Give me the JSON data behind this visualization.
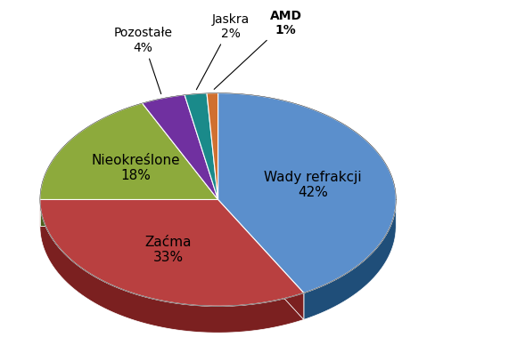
{
  "labels": [
    "Wady refrakcji",
    "Zaćma",
    "Nieokreślone",
    "Pozostałe",
    "Jaskra",
    "AMD"
  ],
  "values": [
    42,
    33,
    18,
    4,
    2,
    1
  ],
  "colors_top": [
    "#5B8FCC",
    "#B94040",
    "#8DAA3C",
    "#7030A0",
    "#1A8A8A",
    "#D07030"
  ],
  "colors_side": [
    "#1F4E79",
    "#7B2020",
    "#4A5E1A",
    "#4A1A70",
    "#0A4A4A",
    "#804010"
  ],
  "dark_green": "#3A5E1A",
  "startangle": 90,
  "depth": 0.15,
  "background_color": "#FFFFFF",
  "font_size_internal": 11,
  "font_size_external": 10
}
